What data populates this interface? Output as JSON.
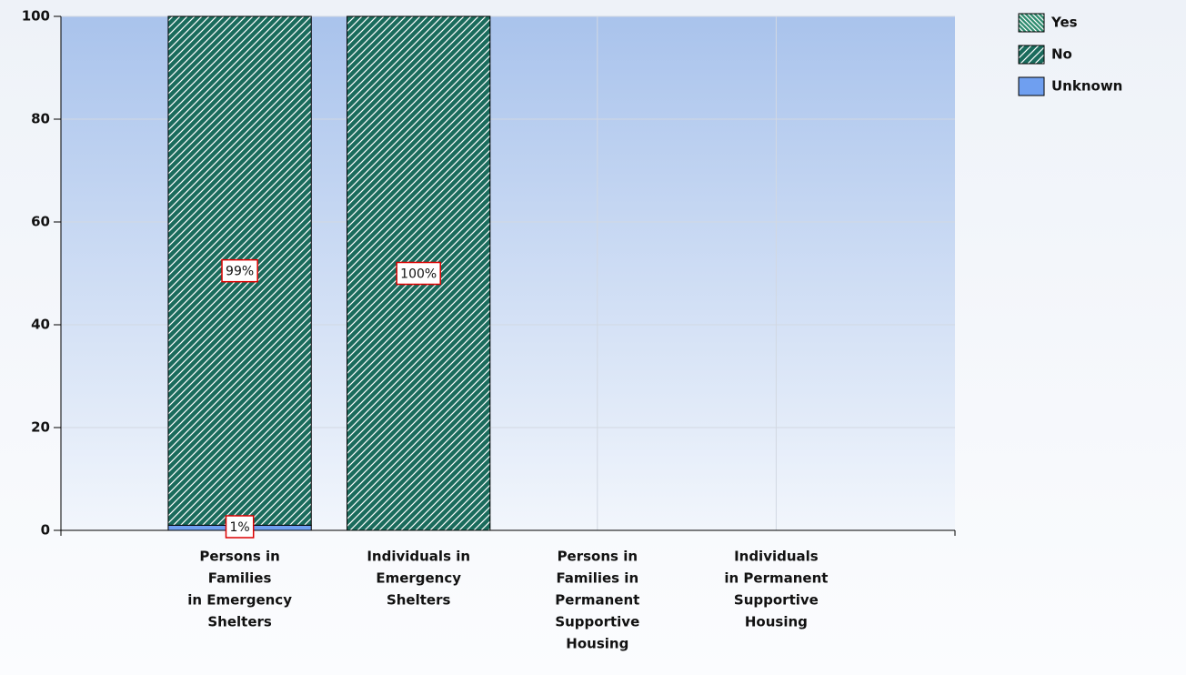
{
  "chart_data": {
    "type": "stacked_bar",
    "categories": [
      [
        "Persons in",
        "Families",
        "in Emergency",
        "Shelters"
      ],
      [
        "Individuals in",
        "Emergency",
        "Shelters"
      ],
      [
        "Persons in",
        "Families in",
        "Permanent",
        "Supportive",
        "Housing"
      ],
      [
        "Individuals",
        "in Permanent",
        "Supportive",
        "Housing"
      ]
    ],
    "series": [
      {
        "name": "Yes",
        "color": "#2e8b6e",
        "hatch": "backslash",
        "values": [
          0,
          0,
          null,
          null
        ],
        "value_labels": [
          null,
          null,
          null,
          null
        ]
      },
      {
        "name": "No",
        "color": "#1a6b5c",
        "hatch": "slash",
        "values": [
          99,
          100,
          null,
          null
        ],
        "value_labels": [
          "99%",
          "100%",
          null,
          null
        ]
      },
      {
        "name": "Unknown",
        "color": "#6f9ff0",
        "hatch": null,
        "values": [
          1,
          0,
          null,
          null
        ],
        "value_labels": [
          "1%",
          null,
          null,
          null
        ]
      }
    ],
    "ylim": [
      0,
      100
    ],
    "yticks": [
      0,
      20,
      40,
      60,
      80,
      100
    ],
    "grid": true,
    "legend": "top-right"
  }
}
